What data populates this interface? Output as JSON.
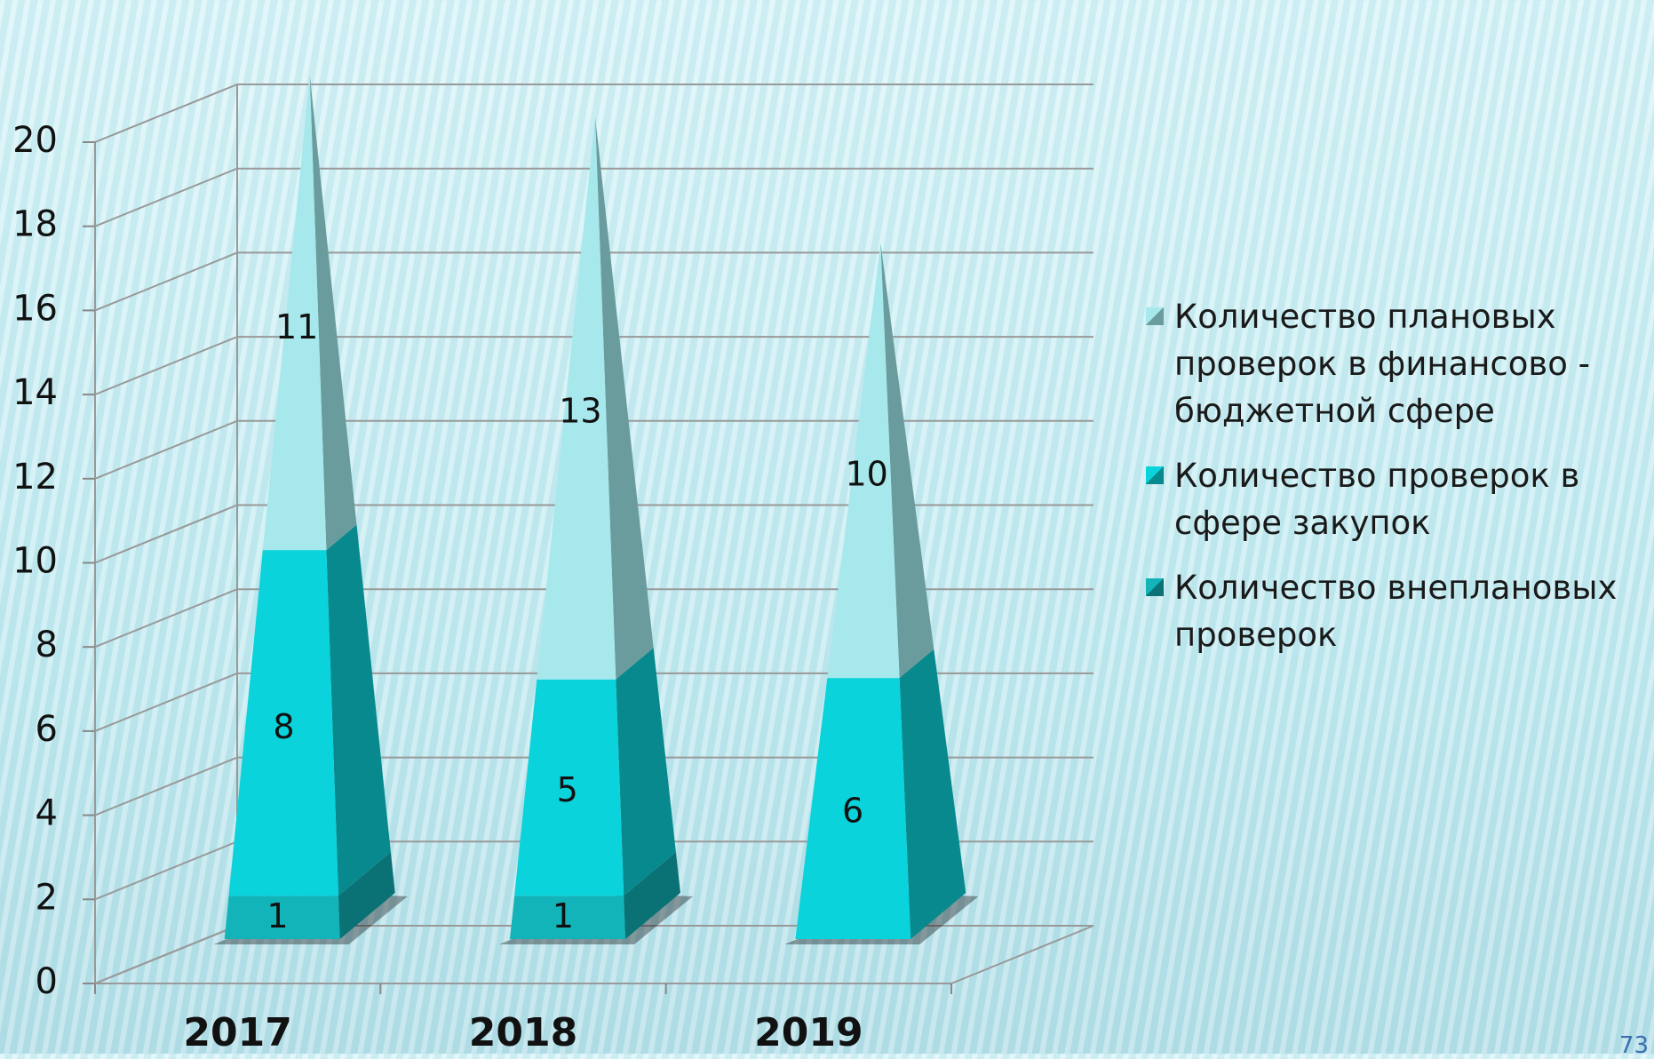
{
  "chart_data": {
    "type": "bar3d-pyramid-stacked",
    "categories": [
      "2017",
      "2018",
      "2019"
    ],
    "series": [
      {
        "name": "Количество внеплановых проверок",
        "color": "#13b4b9",
        "side_color": "#0a7274",
        "values": [
          1,
          1,
          null
        ]
      },
      {
        "name": "Количество проверок в сфере закупок",
        "color": "#0ad3db",
        "side_color": "#08898d",
        "values": [
          8,
          5,
          6
        ]
      },
      {
        "name": "Количество плановых проверок в финансово - бюджетной сфере",
        "color": "#a6e8ec",
        "side_color": "#6b9c9d",
        "values": [
          11,
          13,
          10
        ]
      }
    ],
    "ylim": [
      0,
      20
    ],
    "yticks": [
      0,
      2,
      4,
      6,
      8,
      10,
      12,
      14,
      16,
      18,
      20
    ],
    "grid": true,
    "legend": "right"
  },
  "page_number": "73"
}
